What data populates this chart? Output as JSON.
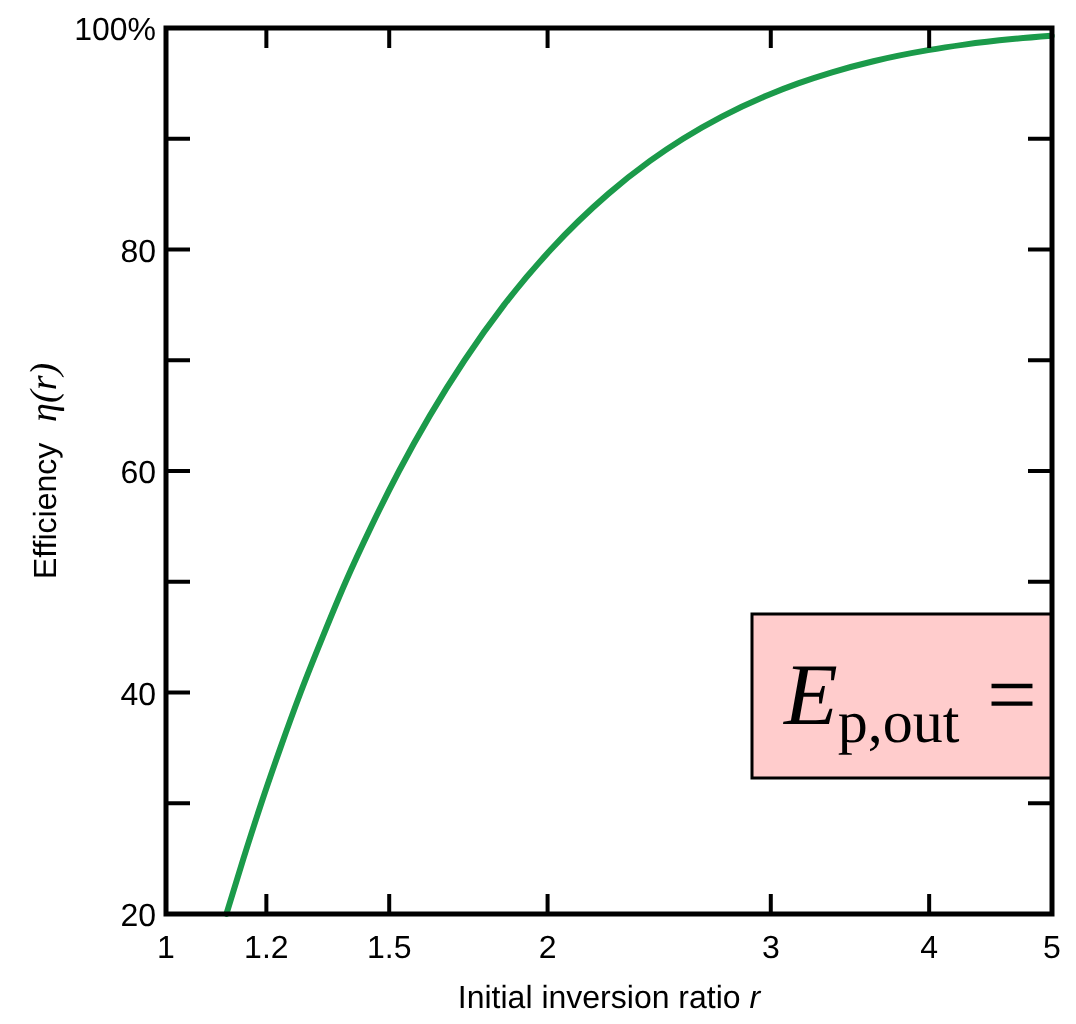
{
  "chart_data": {
    "type": "line",
    "xlabel": "Initial inversion ratio r",
    "ylabel": "Efficiency η(r)",
    "x": [
      1.116,
      1.151,
      1.189,
      1.231,
      1.277,
      1.329,
      1.386,
      1.452,
      1.527,
      1.615,
      1.72,
      1.848,
      2.012,
      2.232,
      2.409,
      2.558,
      2.745,
      2.993,
      3.153,
      3.353,
      3.615,
      3.992,
      4.264,
      4.652,
      4.997
    ],
    "values": [
      20,
      25,
      30,
      35,
      40,
      45,
      50,
      55,
      60,
      65,
      70,
      75,
      80,
      85,
      88,
      90,
      92,
      94,
      95,
      96,
      97,
      98,
      98.5,
      99,
      99.3
    ],
    "color": "#1b9a4a",
    "log": "x",
    "xlim": [
      1,
      5
    ],
    "xticks": [
      1,
      1.2,
      1.5,
      2,
      3,
      4,
      5
    ],
    "ylim": [
      20,
      100
    ],
    "yticks": [
      20,
      {
        "value": 30,
        "label": null
      },
      40,
      {
        "value": 50,
        "label": null
      },
      60,
      {
        "value": 70,
        "label": null
      },
      80,
      {
        "value": 90,
        "label": null
      },
      {
        "value": 100,
        "label": "100%"
      }
    ],
    "grid": false,
    "annotations": [
      "E$_{p,out}$ ="
    ]
  }
}
